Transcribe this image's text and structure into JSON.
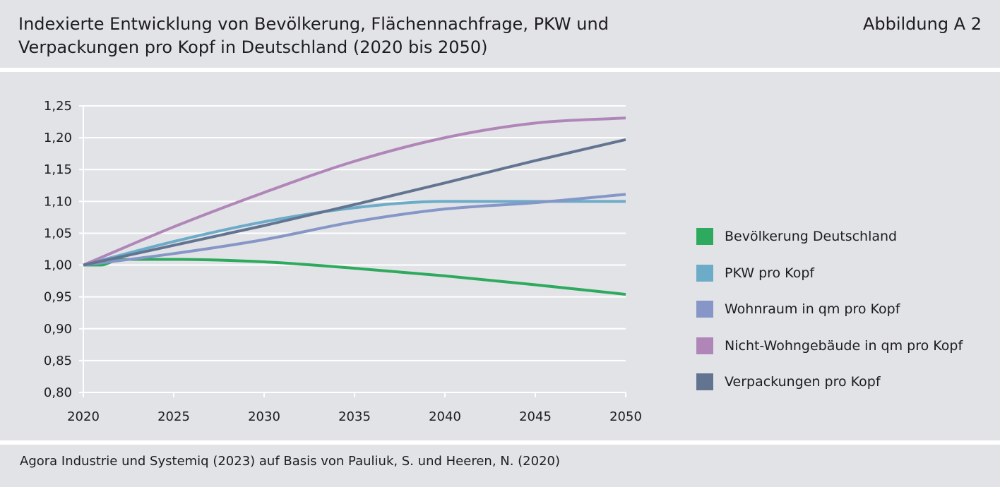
{
  "header": {
    "title": "Indexierte Entwicklung von Bevölkerung, Flächennachfrage, PKW und Verpackungen pro Kopf in Deutschland (2020 bis 2050)",
    "figure_label": "Abbildung A 2"
  },
  "source": "Agora Industrie und Systemiq (2023) auf Basis von Pauliuk, S. und Heeren, N. (2020)",
  "chart_data": {
    "type": "line",
    "title": "Indexierte Entwicklung von Bevölkerung, Flächennachfrage, PKW und Verpackungen pro Kopf in Deutschland (2020 bis 2050)",
    "xlabel": "",
    "ylabel": "",
    "xlim": [
      2020,
      2050
    ],
    "ylim": [
      0.8,
      1.25
    ],
    "x_ticks": [
      2020,
      2025,
      2030,
      2035,
      2040,
      2045,
      2050
    ],
    "x_tick_labels": [
      "2020",
      "2025",
      "2030",
      "2035",
      "2040",
      "2045",
      "2050"
    ],
    "y_ticks": [
      0.8,
      0.85,
      0.9,
      0.95,
      1.0,
      1.05,
      1.1,
      1.15,
      1.2,
      1.25
    ],
    "y_tick_labels": [
      "0,80",
      "0,85",
      "0,90",
      "0,95",
      "1,00",
      "1,05",
      "1,10",
      "1,15",
      "1,20",
      "1,25"
    ],
    "grid": "horizontal",
    "legend_position": "right",
    "series": [
      {
        "name": "Bevölkerung Deutschland",
        "color": "#2eaa5f",
        "x": [
          2020,
          2021,
          2022,
          2025,
          2030,
          2035,
          2040,
          2045,
          2050
        ],
        "values": [
          1.0,
          1.0,
          1.009,
          1.009,
          1.005,
          0.995,
          0.983,
          0.969,
          0.954
        ]
      },
      {
        "name": "PKW pro Kopf",
        "color": "#6cacc9",
        "x": [
          2020,
          2025,
          2030,
          2035,
          2040,
          2045,
          2050
        ],
        "values": [
          1.0,
          1.037,
          1.068,
          1.09,
          1.1,
          1.1,
          1.1
        ]
      },
      {
        "name": "Wohnraum in qm pro Kopf",
        "color": "#8596c7",
        "x": [
          2020,
          2025,
          2030,
          2035,
          2040,
          2045,
          2050
        ],
        "values": [
          1.0,
          1.018,
          1.04,
          1.068,
          1.088,
          1.098,
          1.111
        ]
      },
      {
        "name": "Nicht-Wohngebäude in qm pro Kopf",
        "color": "#b086b8",
        "x": [
          2020,
          2025,
          2030,
          2035,
          2040,
          2045,
          2050
        ],
        "values": [
          1.0,
          1.06,
          1.114,
          1.163,
          1.2,
          1.223,
          1.231
        ]
      },
      {
        "name": "Verpackungen pro Kopf",
        "color": "#637491",
        "x": [
          2020,
          2025,
          2030,
          2035,
          2040,
          2045,
          2050
        ],
        "values": [
          1.0,
          1.031,
          1.062,
          1.095,
          1.129,
          1.164,
          1.197
        ]
      }
    ]
  }
}
